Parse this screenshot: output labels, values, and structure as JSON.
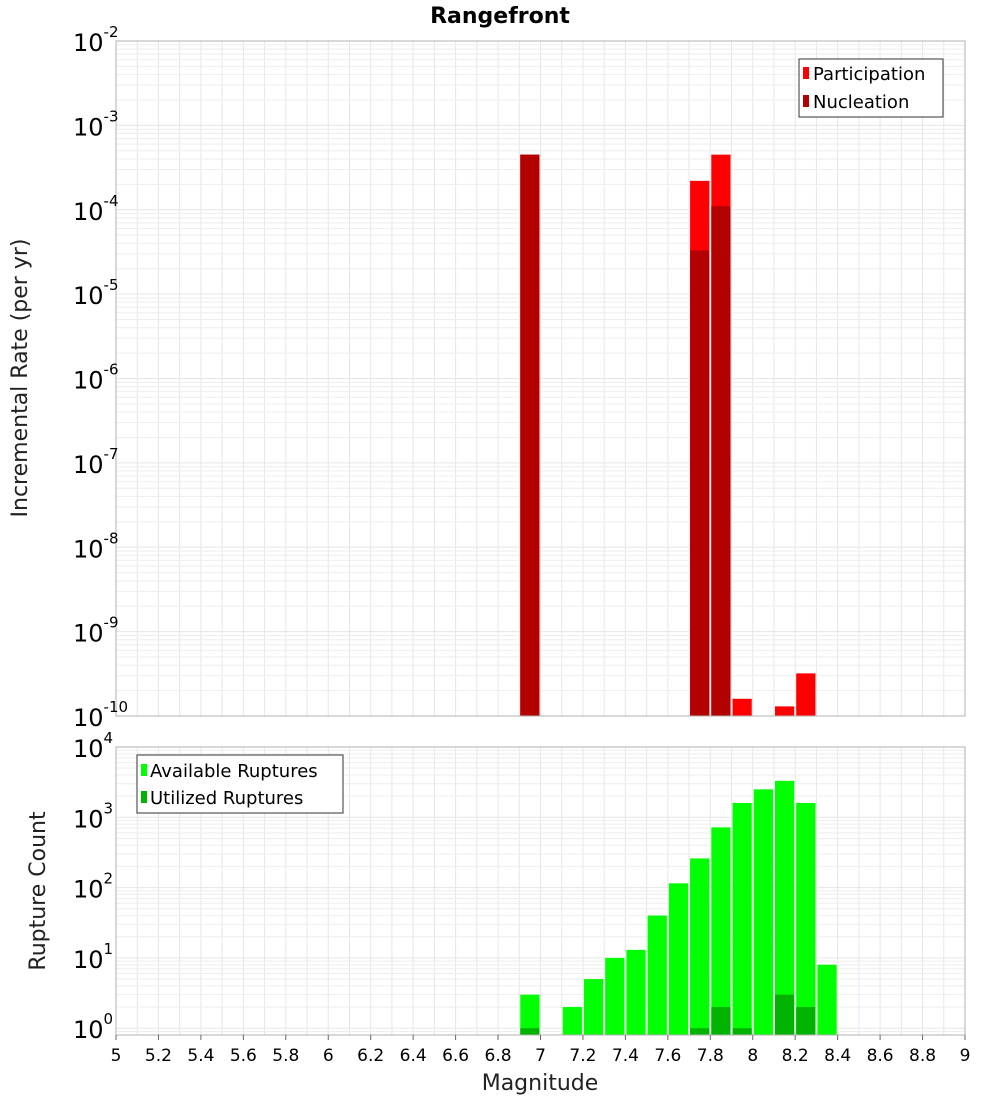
{
  "chart_data": [
    {
      "type": "bar",
      "title": "Rangefront",
      "ylabel": "Incremental Rate (per yr)",
      "xlabel": "",
      "xlim": [
        5,
        9
      ],
      "ylim": [
        1e-10,
        0.01
      ],
      "yscale": "log",
      "grid": true,
      "legend_position": "top-right",
      "bar_width": 0.1,
      "series": [
        {
          "name": "Participation",
          "color": "#ff0000",
          "points": [
            {
              "x": 6.95,
              "y": 0.00045
            },
            {
              "x": 7.75,
              "y": 0.00022
            },
            {
              "x": 7.85,
              "y": 0.00045
            },
            {
              "x": 7.95,
              "y": 1.6e-10
            },
            {
              "x": 8.15,
              "y": 1.3e-10
            },
            {
              "x": 8.25,
              "y": 3.2e-10
            }
          ]
        },
        {
          "name": "Nucleation",
          "color": "#b30000",
          "points": [
            {
              "x": 6.95,
              "y": 0.00045
            },
            {
              "x": 7.75,
              "y": 3.3e-05
            },
            {
              "x": 7.85,
              "y": 0.00011
            }
          ]
        }
      ],
      "y_ticks": [
        {
          "base": "10",
          "exp": "-10"
        },
        {
          "base": "10",
          "exp": "-9"
        },
        {
          "base": "10",
          "exp": "-8"
        },
        {
          "base": "10",
          "exp": "-7"
        },
        {
          "base": "10",
          "exp": "-6"
        },
        {
          "base": "10",
          "exp": "-5"
        },
        {
          "base": "10",
          "exp": "-4"
        },
        {
          "base": "10",
          "exp": "-3"
        },
        {
          "base": "10",
          "exp": "-2"
        }
      ]
    },
    {
      "type": "bar",
      "ylabel": "Rupture Count",
      "xlabel": "Magnitude",
      "xlim": [
        5,
        9
      ],
      "ylim": [
        0.8,
        10000
      ],
      "yscale": "log",
      "grid": true,
      "legend_position": "top-left",
      "bar_width": 0.1,
      "series": [
        {
          "name": "Available Ruptures",
          "color": "#00ff00",
          "points": [
            {
              "x": 6.95,
              "y": 3
            },
            {
              "x": 7.15,
              "y": 2
            },
            {
              "x": 7.25,
              "y": 5
            },
            {
              "x": 7.35,
              "y": 10
            },
            {
              "x": 7.45,
              "y": 13
            },
            {
              "x": 7.55,
              "y": 40
            },
            {
              "x": 7.65,
              "y": 115
            },
            {
              "x": 7.75,
              "y": 260
            },
            {
              "x": 7.85,
              "y": 720
            },
            {
              "x": 7.95,
              "y": 1600
            },
            {
              "x": 8.05,
              "y": 2500
            },
            {
              "x": 8.15,
              "y": 3300
            },
            {
              "x": 8.25,
              "y": 1600
            },
            {
              "x": 8.35,
              "y": 8
            }
          ]
        },
        {
          "name": "Utilized Ruptures",
          "color": "#00b300",
          "points": [
            {
              "x": 6.95,
              "y": 1
            },
            {
              "x": 7.75,
              "y": 1
            },
            {
              "x": 7.85,
              "y": 2
            },
            {
              "x": 7.95,
              "y": 1
            },
            {
              "x": 8.15,
              "y": 3
            },
            {
              "x": 8.25,
              "y": 2
            }
          ]
        }
      ],
      "y_ticks": [
        {
          "value": 1,
          "base": "10",
          "exp": "0"
        },
        {
          "value": 10,
          "base": "10",
          "exp": "1"
        },
        {
          "value": 100,
          "base": "10",
          "exp": "2"
        },
        {
          "value": 1000,
          "base": "10",
          "exp": "3"
        },
        {
          "value": 10000,
          "base": "10",
          "exp": "4"
        }
      ],
      "x_ticks": [
        "5",
        "5.2",
        "5.4",
        "5.6",
        "5.8",
        "6",
        "6.2",
        "6.4",
        "6.6",
        "6.8",
        "7",
        "7.2",
        "7.4",
        "7.6",
        "7.8",
        "8",
        "8.2",
        "8.4",
        "8.6",
        "8.8",
        "9"
      ]
    }
  ]
}
